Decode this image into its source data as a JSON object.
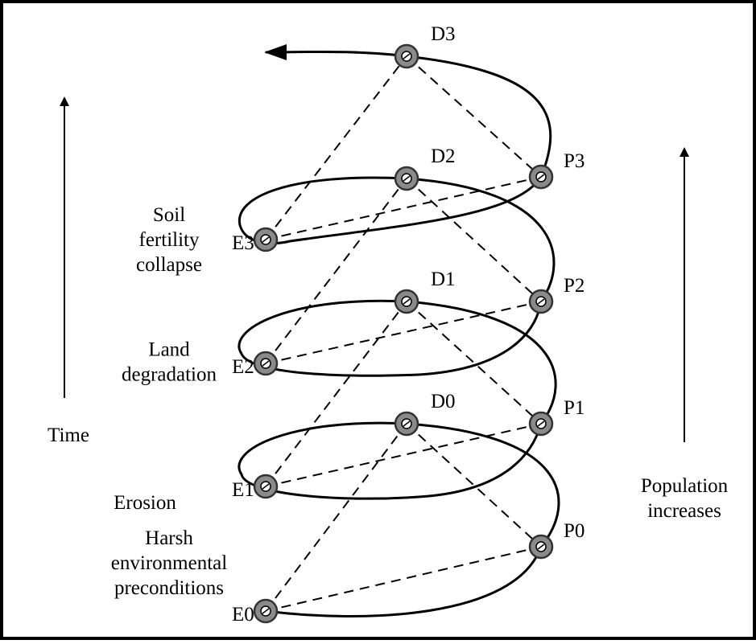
{
  "nodes": [
    {
      "label": "E0"
    },
    {
      "label": "P0"
    },
    {
      "label": "D0"
    },
    {
      "label": "E1"
    },
    {
      "label": "P1"
    },
    {
      "label": "D1"
    },
    {
      "label": "E2"
    },
    {
      "label": "P2"
    },
    {
      "label": "D2"
    },
    {
      "label": "E3"
    },
    {
      "label": "P3"
    },
    {
      "label": "D3"
    }
  ],
  "stages": [
    {
      "lines": [
        "Harsh",
        "environmental",
        "preconditions"
      ]
    },
    {
      "lines": [
        "Erosion"
      ]
    },
    {
      "lines": [
        "Land",
        "degradation"
      ]
    },
    {
      "lines": [
        "Soil",
        "fertility",
        "collapse"
      ]
    }
  ],
  "time_label": "Time",
  "population_label": [
    "Population",
    "increases"
  ]
}
